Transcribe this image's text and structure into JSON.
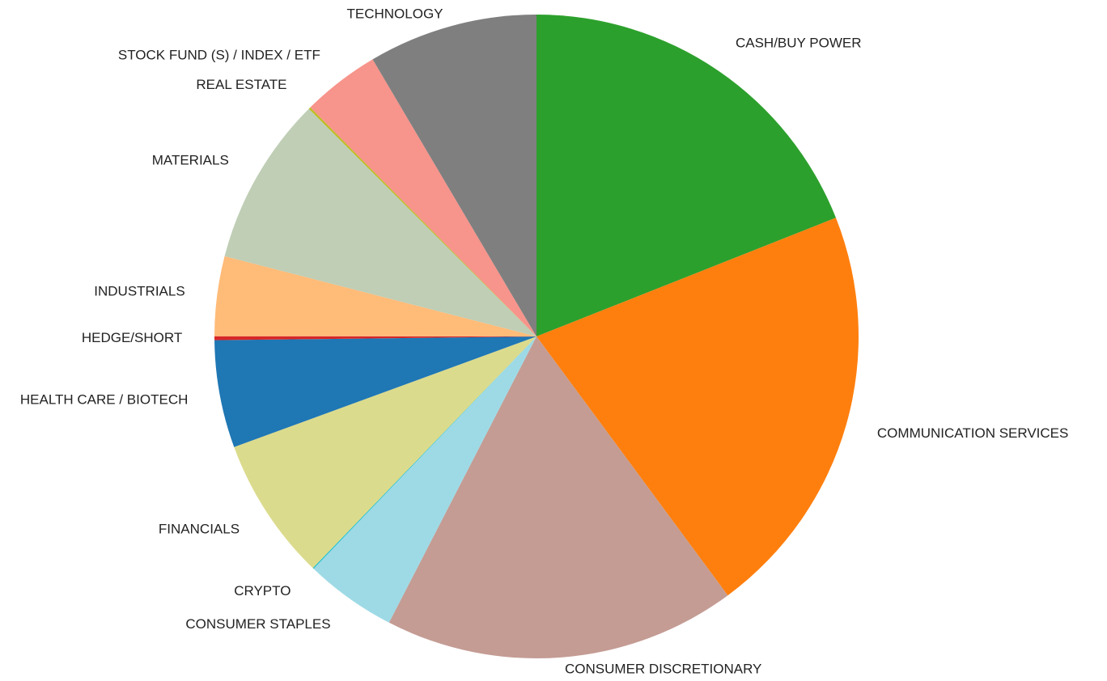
{
  "chart_data": {
    "type": "pie",
    "categories": [
      "CASH/BUY POWER",
      "COMMUNICATION SERVICES",
      "CONSUMER DISCRETIONARY",
      "CONSUMER STAPLES",
      "CRYPTO",
      "FINANCIALS",
      "HEALTH CARE / BIOTECH",
      "HEDGE/SHORT",
      "INDUSTRIALS",
      "MATERIALS",
      "REAL ESTATE",
      "STOCK FUND (S) / INDEX / ETF",
      "TECHNOLOGY"
    ],
    "values": [
      19.0,
      20.9,
      17.7,
      4.6,
      0.05,
      7.2,
      5.4,
      0.2,
      4.0,
      8.5,
      0.1,
      3.9,
      8.5
    ],
    "colors": [
      "#2ca02c",
      "#ff7f0e",
      "#c49c94",
      "#9edae5",
      "#17becf",
      "#dbdb8d",
      "#1f77b4",
      "#d62728",
      "#ffbb78",
      "#bfceb5",
      "#bcbd22",
      "#f7948b",
      "#7f7f7f"
    ]
  }
}
